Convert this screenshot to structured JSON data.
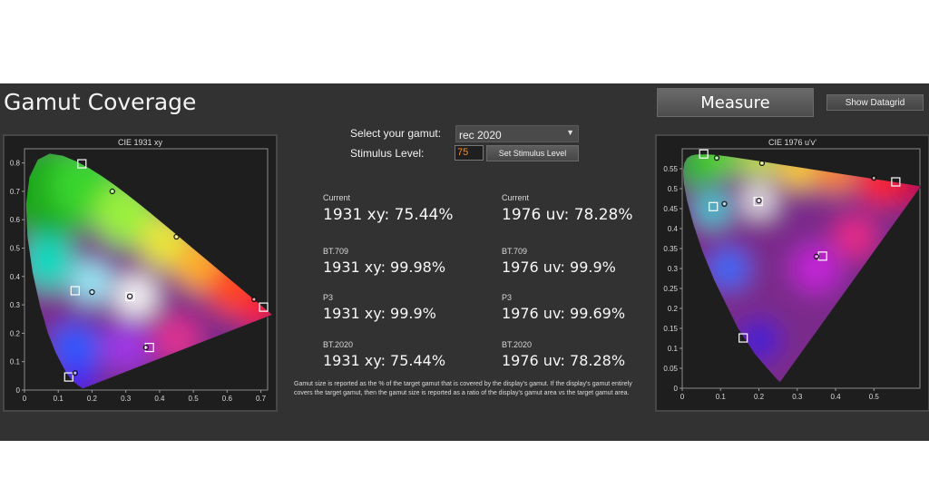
{
  "header": {
    "title": "Gamut Coverage"
  },
  "buttons": {
    "measure": "Measure",
    "datagrid": "Show Datagrid",
    "set_stimulus": "Set Stimulus Level"
  },
  "controls": {
    "gamut_label": "Select your gamut:",
    "gamut_value": "rec 2020",
    "stimulus_label": "Stimulus Level:",
    "stimulus_value": "75"
  },
  "stats": {
    "left": [
      {
        "label": "Current",
        "value": "1931 xy: 75.44%"
      },
      {
        "label": "BT.709",
        "value": "1931 xy: 99.98%"
      },
      {
        "label": "P3",
        "value": "1931 xy: 99.9%"
      },
      {
        "label": "BT.2020",
        "value": "1931 xy: 75.44%"
      }
    ],
    "right": [
      {
        "label": "Current",
        "value": "1976 uv: 78.28%"
      },
      {
        "label": "BT.709",
        "value": "1976 uv: 99.9%"
      },
      {
        "label": "P3",
        "value": "1976 uv: 99.69%"
      },
      {
        "label": "BT.2020",
        "value": "1976 uv: 78.28%"
      }
    ]
  },
  "note": "Gamut size is reported as the % of the target gamut that is covered by the display's gamut. If the display's gamut entirely covers the target gamut, then the gamut size is reported as a ratio of the display's gamut area vs the target gamut area.",
  "chart_data": [
    {
      "type": "scatter",
      "title": "CIE 1931 xy",
      "xlim": [
        0,
        0.72
      ],
      "ylim": [
        0,
        0.85
      ],
      "x_ticks": [
        "0",
        "0.1",
        "0.2",
        "0.3",
        "0.4",
        "0.5",
        "0.6",
        "0.7"
      ],
      "y_ticks": [
        "0",
        "0.1",
        "0.2",
        "0.3",
        "0.4",
        "0.5",
        "0.6",
        "0.7",
        "0.8"
      ],
      "target_points": [
        {
          "x": 0.17,
          "y": 0.797
        },
        {
          "x": 0.708,
          "y": 0.292
        },
        {
          "x": 0.131,
          "y": 0.046
        },
        {
          "x": 0.3127,
          "y": 0.329
        },
        {
          "x": 0.15,
          "y": 0.35
        },
        {
          "x": 0.37,
          "y": 0.15
        }
      ],
      "measured_points": [
        {
          "x": 0.26,
          "y": 0.7
        },
        {
          "x": 0.68,
          "y": 0.32
        },
        {
          "x": 0.15,
          "y": 0.06
        },
        {
          "x": 0.312,
          "y": 0.33
        },
        {
          "x": 0.2,
          "y": 0.345
        },
        {
          "x": 0.36,
          "y": 0.15
        },
        {
          "x": 0.45,
          "y": 0.54
        }
      ]
    },
    {
      "type": "scatter",
      "title": "CIE 1976 u'v'",
      "xlim": [
        0,
        0.62
      ],
      "ylim": [
        0,
        0.6
      ],
      "x_ticks": [
        "0",
        "0.1",
        "0.2",
        "0.3",
        "0.4",
        "0.5"
      ],
      "y_ticks": [
        "0",
        "0.05",
        "0.1",
        "0.15",
        "0.2",
        "0.25",
        "0.3",
        "0.35",
        "0.4",
        "0.45",
        "0.5",
        "0.55"
      ],
      "target_points": [
        {
          "x": 0.056,
          "y": 0.587
        },
        {
          "x": 0.557,
          "y": 0.517
        },
        {
          "x": 0.159,
          "y": 0.126
        },
        {
          "x": 0.198,
          "y": 0.468
        },
        {
          "x": 0.081,
          "y": 0.455
        },
        {
          "x": 0.366,
          "y": 0.331
        }
      ],
      "measured_points": [
        {
          "x": 0.09,
          "y": 0.577
        },
        {
          "x": 0.5,
          "y": 0.527
        },
        {
          "x": 0.2,
          "y": 0.47
        },
        {
          "x": 0.11,
          "y": 0.462
        },
        {
          "x": 0.35,
          "y": 0.33
        },
        {
          "x": 0.208,
          "y": 0.564
        }
      ]
    }
  ]
}
